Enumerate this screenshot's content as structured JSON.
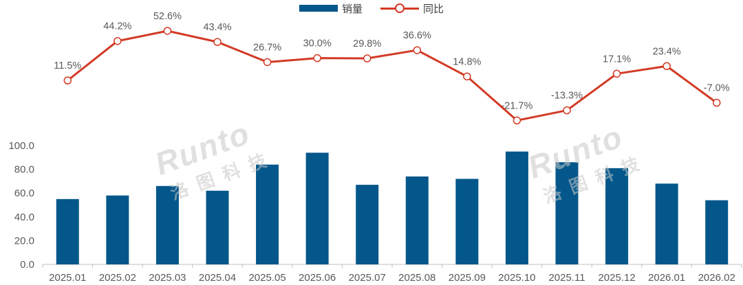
{
  "chart_data": {
    "type": "bar+line",
    "categories": [
      "2025.01",
      "2025.02",
      "2025.03",
      "2025.04",
      "2025.05",
      "2025.06",
      "2025.07",
      "2025.08",
      "2025.09",
      "2025.10",
      "2025.11",
      "2025.12",
      "2026.01",
      "2026.02"
    ],
    "series": [
      {
        "name": "销量",
        "type": "bar",
        "color": "#03578a",
        "values": [
          55,
          58,
          66,
          62,
          84,
          94,
          67,
          74,
          72,
          95,
          86,
          81,
          68,
          54
        ]
      },
      {
        "name": "同比",
        "type": "line",
        "color": "#d23a25",
        "values": [
          11.5,
          44.2,
          52.6,
          43.4,
          26.7,
          30.0,
          29.8,
          36.6,
          14.8,
          -21.7,
          -13.3,
          17.1,
          23.4,
          -7.0
        ],
        "labels": [
          "11.5%",
          "44.2%",
          "52.6%",
          "43.4%",
          "26.7%",
          "30.0%",
          "29.8%",
          "36.6%",
          "14.8%",
          "-21.7%",
          "-13.3%",
          "17.1%",
          "23.4%",
          "-7.0%"
        ]
      }
    ],
    "y_axis": {
      "ticks": [
        "0.0",
        "20.0",
        "40.0",
        "60.0",
        "80.0",
        "100.0"
      ],
      "ylim": [
        0,
        100
      ]
    },
    "legend": "top-center",
    "grid": false
  },
  "watermarks": [
    {
      "main": "Runto",
      "sub": "洛图科技"
    },
    {
      "main": "Runto",
      "sub": "洛图科技"
    }
  ]
}
